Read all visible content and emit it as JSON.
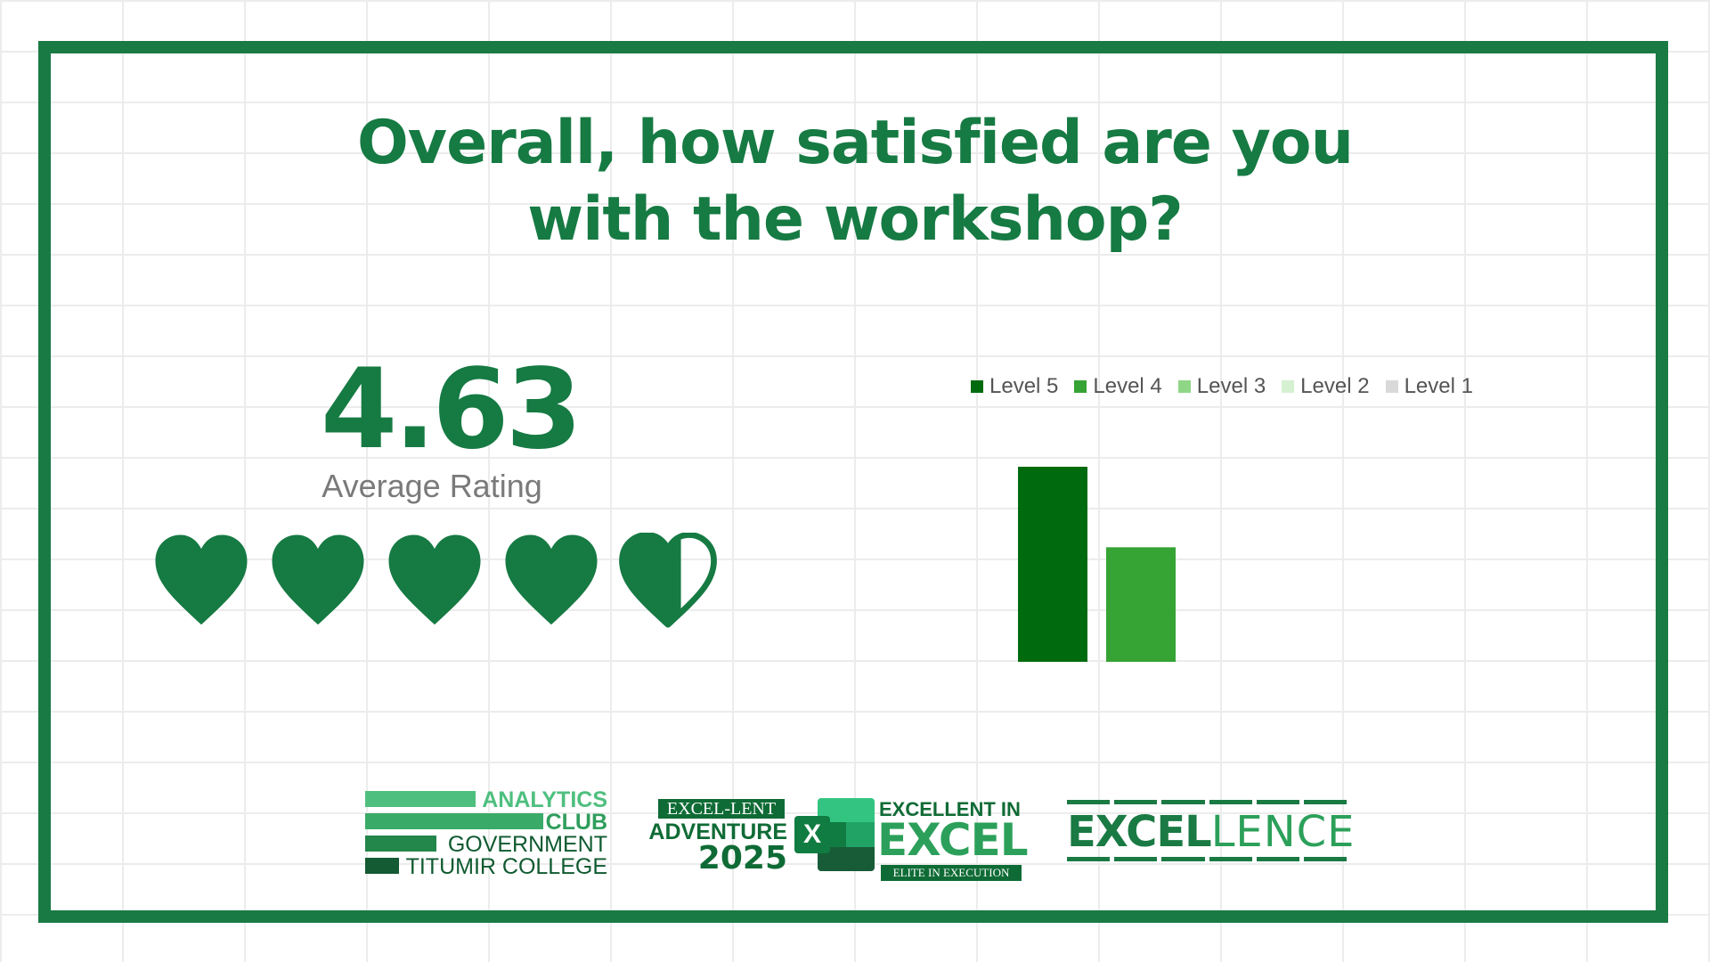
{
  "title": {
    "line1": "Overall, how satisfied are you",
    "line2": "with the workshop?"
  },
  "rating": {
    "value": "4.63",
    "label": "Average Rating",
    "hearts_filled": 4.63,
    "hearts_total": 5,
    "color": "#167a43"
  },
  "chart_data": {
    "type": "bar",
    "categories": [
      "Level 5",
      "Level 4",
      "Level 3",
      "Level 2",
      "Level 1"
    ],
    "values": [
      63,
      37,
      0,
      0,
      0
    ],
    "colors": [
      "#006b0e",
      "#36a335",
      "#8fd686",
      "#d6f0d2",
      "#d9d9d9"
    ],
    "legend_position": "top",
    "grid": false,
    "axes_visible": false
  },
  "logos": {
    "analytics_club": {
      "line1": "ANALYTICS",
      "line2": "CLUB",
      "line3": "GOVERNMENT",
      "line4": "TITUMIR COLLEGE"
    },
    "adventure": {
      "box": "EXCEL-LENT",
      "word": "ADVENTURE",
      "year": "2025",
      "icon": "excel-icon",
      "icon_letter": "X",
      "top": "EXCELLENT IN",
      "big": "EXCEL",
      "sub": "ELITE IN EXECUTION"
    },
    "excellence": {
      "bold": "EXCEL",
      "thin": "LENCE"
    }
  },
  "colors": {
    "frame": "#1a7a43",
    "title": "#167a43",
    "grid": "#ececec"
  }
}
